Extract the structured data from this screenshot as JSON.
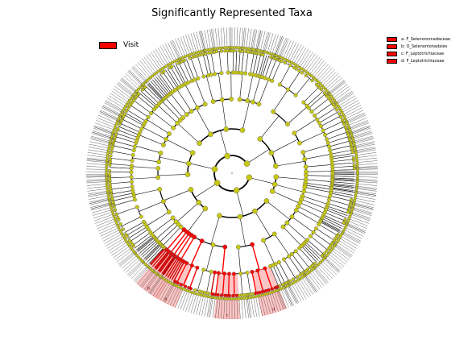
{
  "title": "Significantly Represented Taxa",
  "legend": {
    "label": "Visit",
    "color": "#ff0000"
  },
  "taxa": [
    {
      "letter": "a",
      "label": "a: F_Selenomonadaceae"
    },
    {
      "letter": "b",
      "label": "b: O_Selenomonadales"
    },
    {
      "letter": "c",
      "label": "c: F_Leptotrichiaceae"
    },
    {
      "letter": "d",
      "label": "d: F_Leptotrichiaceae"
    }
  ],
  "colors": {
    "node": "#c8c814",
    "significant": "#ff0000",
    "highlight": "#ffb3b3"
  },
  "chart_data": {
    "type": "cladogram",
    "rings": 6,
    "leaf_count": 330,
    "significant_clades": [
      {
        "letter": "a",
        "angle_deg": 118
      },
      {
        "letter": "b",
        "angle_deg": 126
      },
      {
        "letter": "c",
        "angle_deg": 92
      },
      {
        "letter": "d",
        "angle_deg": 73
      }
    ]
  }
}
